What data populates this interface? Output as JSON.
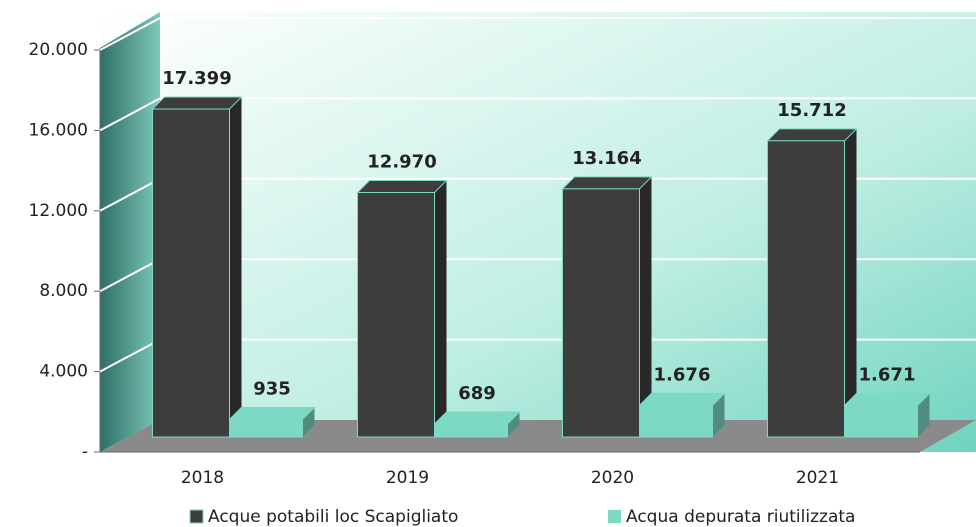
{
  "chart_data": {
    "type": "bar",
    "categories": [
      "2018",
      "2019",
      "2020",
      "2021"
    ],
    "series": [
      {
        "name": "Acque potabili loc Scapigliato",
        "color": "#3d3d3d",
        "values": [
          17399,
          12970,
          13164,
          15712
        ],
        "value_labels": [
          "17.399",
          "12.970",
          "13.164",
          "15.712"
        ]
      },
      {
        "name": "Acqua depurata riutilizzata",
        "color": "#7dd8c4",
        "values": [
          935,
          689,
          1676,
          1671
        ],
        "value_labels": [
          "935",
          "689",
          "1.676",
          "1.671"
        ]
      }
    ],
    "ylim": [
      0,
      20000
    ],
    "yticks": [
      {
        "value": 0,
        "label": "-"
      },
      {
        "value": 4000,
        "label": "4.000"
      },
      {
        "value": 8000,
        "label": "8.000"
      },
      {
        "value": 12000,
        "label": "12.000"
      },
      {
        "value": 16000,
        "label": "16.000"
      },
      {
        "value": 20000,
        "label": "20.000"
      }
    ],
    "grid": true
  }
}
